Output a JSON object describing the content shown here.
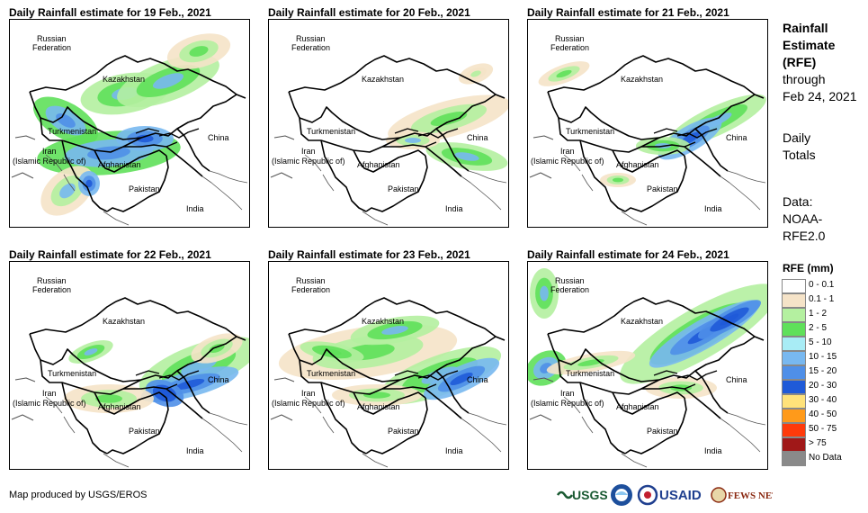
{
  "panels": [
    {
      "title": "Daily Rainfall estimate for 19 Feb., 2021"
    },
    {
      "title": "Daily Rainfall estimate for 20 Feb., 2021"
    },
    {
      "title": "Daily Rainfall estimate for 21 Feb., 2021"
    },
    {
      "title": "Daily Rainfall estimate for 22 Feb., 2021"
    },
    {
      "title": "Daily Rainfall estimate for 23 Feb., 2021"
    },
    {
      "title": "Daily Rainfall estimate for 24 Feb., 2021"
    }
  ],
  "map_labels": {
    "russia_1": "Russian",
    "russia_2": "Federation",
    "kazakhstan": "Kazakhstan",
    "turkmenistan": "Turkmenistan",
    "iran_1": "Iran",
    "iran_2": "(Islamic Republic of)",
    "afghanistan": "Afghanistan",
    "pakistan": "Pakistan",
    "india": "India",
    "china": "China"
  },
  "side": {
    "title_1": "Rainfall",
    "title_2": "Estimate",
    "title_3": "(RFE)",
    "through": "through",
    "date": "Feb 24, 2021",
    "daily_1": "Daily",
    "daily_2": "Totals",
    "data_1": "Data:",
    "data_2": "NOAA-",
    "data_3": "RFE2.0"
  },
  "legend": {
    "title": "RFE (mm)",
    "items": [
      {
        "label": "0 - 0.1",
        "color": "#ffffff"
      },
      {
        "label": "0.1 - 1",
        "color": "#f5e3c8"
      },
      {
        "label": "1 - 2",
        "color": "#b4f0a0"
      },
      {
        "label": "2 - 5",
        "color": "#5fe05a"
      },
      {
        "label": "5 - 10",
        "color": "#a8ecf5"
      },
      {
        "label": "10 - 15",
        "color": "#78b8f0"
      },
      {
        "label": "15 - 20",
        "color": "#4f8fe8"
      },
      {
        "label": "20 - 30",
        "color": "#1f5ad8"
      },
      {
        "label": "30 - 40",
        "color": "#ffe27a"
      },
      {
        "label": "40 - 50",
        "color": "#ff9a1a"
      },
      {
        "label": "50 - 75",
        "color": "#ff3a0a"
      },
      {
        "label": "> 75",
        "color": "#a01818"
      },
      {
        "label": "No Data",
        "color": "#8a8a8a"
      }
    ]
  },
  "footer": {
    "credit": "Map produced by USGS/EROS"
  },
  "logos": {
    "usgs": "USGS",
    "usaid": "USAID",
    "fewsnet": "FEWS NET"
  }
}
